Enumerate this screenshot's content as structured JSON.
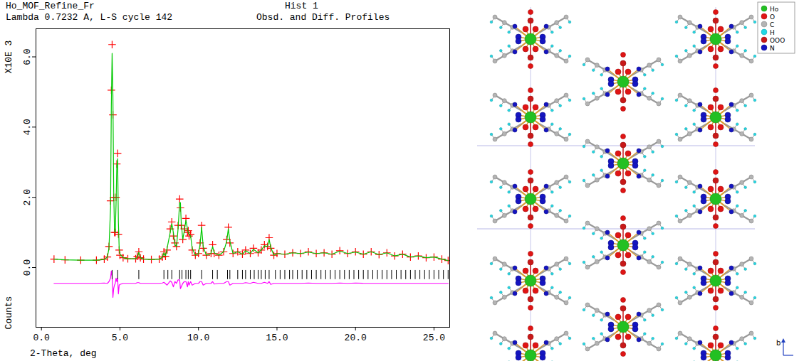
{
  "chart_data": {
    "type": "line",
    "title": "Ho_MOF_Refine_Fr",
    "subtitle": "Lambda 0.7232 A, L-S cycle 142",
    "annotations": [
      "Hist 1",
      "Obsd. and Diff. Profiles"
    ],
    "x_label": "2-Theta, deg",
    "y_label": "Counts",
    "y_multiplier_label": "X10E 3",
    "xlim": [
      -0.35,
      26.0
    ],
    "ylim": [
      -1.7,
      6.8
    ],
    "xticks": [
      {
        "value": 0,
        "label": "0.0"
      },
      {
        "value": 5,
        "label": "5.0"
      },
      {
        "value": 10,
        "label": "10.0"
      },
      {
        "value": 15,
        "label": "15.0"
      },
      {
        "value": 20,
        "label": "20.0"
      },
      {
        "value": 25,
        "label": "25.0"
      }
    ],
    "yticks": [
      {
        "value": 0,
        "label": "0.0"
      },
      {
        "value": 2,
        "label": "2.0"
      },
      {
        "value": 4,
        "label": "4.0"
      },
      {
        "value": 6,
        "label": "6.0"
      }
    ],
    "x": [
      0.8,
      1.5,
      2.5,
      3.5,
      4.0,
      4.2,
      4.3,
      4.4,
      4.45,
      4.5,
      4.55,
      4.6,
      4.65,
      4.7,
      4.75,
      4.8,
      4.85,
      4.9,
      4.95,
      5.0,
      5.2,
      5.5,
      6.0,
      6.1,
      6.2,
      6.3,
      6.5,
      7.0,
      7.5,
      7.7,
      7.8,
      7.9,
      8.0,
      8.2,
      8.3,
      8.4,
      8.5,
      8.6,
      8.7,
      8.8,
      8.85,
      8.9,
      9.0,
      9.1,
      9.2,
      9.3,
      9.35,
      9.4,
      9.5,
      9.6,
      9.8,
      10.0,
      10.1,
      10.2,
      10.3,
      10.5,
      10.8,
      10.9,
      11.0,
      11.3,
      11.6,
      11.8,
      11.9,
      12.0,
      12.2,
      12.5,
      12.8,
      13.0,
      13.3,
      13.5,
      13.8,
      14.0,
      14.2,
      14.4,
      14.5,
      14.6,
      14.8,
      15.0,
      15.5,
      16.0,
      16.5,
      17.0,
      17.5,
      18.0,
      18.5,
      19.0,
      19.5,
      20.0,
      20.5,
      21.0,
      21.5,
      22.0,
      22.5,
      23.0,
      23.5,
      24.0,
      24.5,
      25.0,
      25.5,
      25.9
    ],
    "series": [
      {
        "type": "scatter",
        "marker": "plus",
        "color": "#ff0000",
        "values": [
          0.24,
          0.22,
          0.21,
          0.21,
          0.24,
          0.3,
          0.6,
          1.9,
          5.05,
          6.35,
          4.35,
          2.0,
          1.0,
          1.0,
          2.0,
          2.95,
          3.25,
          0.95,
          0.5,
          0.35,
          0.28,
          0.25,
          0.25,
          0.32,
          0.45,
          0.28,
          0.24,
          0.23,
          0.24,
          0.3,
          0.45,
          0.32,
          0.5,
          1.1,
          1.3,
          0.9,
          0.7,
          0.6,
          1.2,
          1.95,
          1.7,
          1.2,
          0.8,
          1.1,
          1.4,
          1.0,
          1.05,
          0.9,
          0.95,
          0.5,
          0.35,
          0.4,
          0.7,
          1.2,
          0.55,
          0.35,
          0.4,
          0.65,
          0.4,
          0.35,
          0.45,
          0.8,
          1.15,
          0.7,
          0.4,
          0.45,
          0.38,
          0.5,
          0.4,
          0.55,
          0.42,
          0.5,
          0.65,
          0.6,
          0.85,
          0.55,
          0.35,
          0.4,
          0.38,
          0.42,
          0.4,
          0.45,
          0.4,
          0.42,
          0.38,
          0.48,
          0.4,
          0.45,
          0.38,
          0.45,
          0.37,
          0.42,
          0.33,
          0.38,
          0.3,
          0.33,
          0.28,
          0.3,
          0.24,
          0.2
        ]
      },
      {
        "type": "line",
        "line_style": "solid",
        "color": "#00c800",
        "values": [
          0.24,
          0.22,
          0.21,
          0.21,
          0.23,
          0.3,
          0.55,
          1.7,
          4.6,
          6.1,
          4.9,
          2.2,
          1.1,
          1.0,
          1.8,
          2.9,
          3.1,
          1.3,
          0.55,
          0.38,
          0.28,
          0.25,
          0.25,
          0.3,
          0.43,
          0.28,
          0.24,
          0.23,
          0.24,
          0.29,
          0.42,
          0.33,
          0.55,
          1.0,
          1.25,
          1.0,
          0.65,
          0.6,
          1.1,
          1.85,
          1.85,
          1.3,
          0.8,
          1.05,
          1.35,
          1.1,
          1.0,
          0.95,
          0.9,
          0.55,
          0.35,
          0.4,
          0.65,
          1.15,
          0.6,
          0.35,
          0.4,
          0.6,
          0.42,
          0.35,
          0.45,
          0.75,
          1.1,
          0.75,
          0.4,
          0.45,
          0.38,
          0.48,
          0.4,
          0.52,
          0.42,
          0.5,
          0.62,
          0.6,
          0.8,
          0.58,
          0.35,
          0.4,
          0.38,
          0.42,
          0.4,
          0.44,
          0.4,
          0.42,
          0.38,
          0.47,
          0.4,
          0.44,
          0.38,
          0.45,
          0.37,
          0.42,
          0.33,
          0.38,
          0.3,
          0.33,
          0.28,
          0.3,
          0.24,
          0.2
        ]
      },
      {
        "type": "line",
        "line_style": "solid",
        "color": "#ff00ff",
        "values": [
          -0.45,
          -0.45,
          -0.45,
          -0.45,
          -0.44,
          -0.45,
          -0.4,
          -0.3,
          -0.1,
          -0.25,
          -0.85,
          -0.6,
          -0.5,
          -0.45,
          -0.3,
          -0.4,
          -0.3,
          -0.75,
          -0.5,
          -0.48,
          -0.45,
          -0.45,
          -0.45,
          -0.43,
          -0.43,
          -0.45,
          -0.45,
          -0.45,
          -0.45,
          -0.44,
          -0.42,
          -0.46,
          -0.5,
          -0.38,
          -0.42,
          -0.55,
          -0.4,
          -0.45,
          -0.35,
          -0.35,
          -0.6,
          -0.55,
          -0.45,
          -0.4,
          -0.4,
          -0.55,
          -0.4,
          -0.5,
          -0.4,
          -0.5,
          -0.45,
          -0.45,
          -0.4,
          -0.4,
          -0.5,
          -0.45,
          -0.45,
          -0.4,
          -0.47,
          -0.45,
          -0.45,
          -0.4,
          -0.4,
          -0.5,
          -0.45,
          -0.45,
          -0.45,
          -0.43,
          -0.45,
          -0.42,
          -0.45,
          -0.45,
          -0.42,
          -0.45,
          -0.4,
          -0.48,
          -0.45,
          -0.45,
          -0.45,
          -0.45,
          -0.45,
          -0.44,
          -0.45,
          -0.45,
          -0.45,
          -0.44,
          -0.45,
          -0.44,
          -0.45,
          -0.45,
          -0.45,
          -0.45,
          -0.45,
          -0.45,
          -0.45,
          -0.45,
          -0.45,
          -0.45,
          -0.45,
          -0.45
        ]
      },
      {
        "type": "tick",
        "color": "#000000",
        "x": [
          4.5,
          4.85,
          6.2,
          7.8,
          8.05,
          8.3,
          8.8,
          8.95,
          9.2,
          9.35,
          9.5,
          10.2,
          10.9,
          11.2,
          11.85,
          12.0,
          12.5,
          12.8,
          13.0,
          13.3,
          13.55,
          13.8,
          14.0,
          14.25,
          14.5,
          14.9,
          15.2,
          15.5,
          15.8,
          16.0,
          16.3,
          16.6,
          16.9,
          17.2,
          17.5,
          17.8,
          18.1,
          18.4,
          18.7,
          19.0,
          19.3,
          19.6,
          19.9,
          20.2,
          20.5,
          20.8,
          21.1,
          21.4,
          21.7,
          22.0,
          22.3,
          22.6,
          22.9,
          23.2,
          23.5,
          23.8,
          24.1,
          24.4,
          24.7,
          25.0,
          25.3,
          25.6,
          25.9
        ],
        "y_range": [
          -0.34,
          -0.08
        ]
      }
    ]
  },
  "structure_image": {
    "legend": [
      {
        "label": "Ho",
        "color": "#22c022"
      },
      {
        "label": "O",
        "color": "#e01414"
      },
      {
        "label": "C",
        "color": "#b4b4b4"
      },
      {
        "label": "H",
        "color": "#22d8e4"
      },
      {
        "label": "OOO",
        "color": "#c81818"
      },
      {
        "label": "N",
        "color": "#1414c0"
      }
    ],
    "axis_label": "b"
  }
}
